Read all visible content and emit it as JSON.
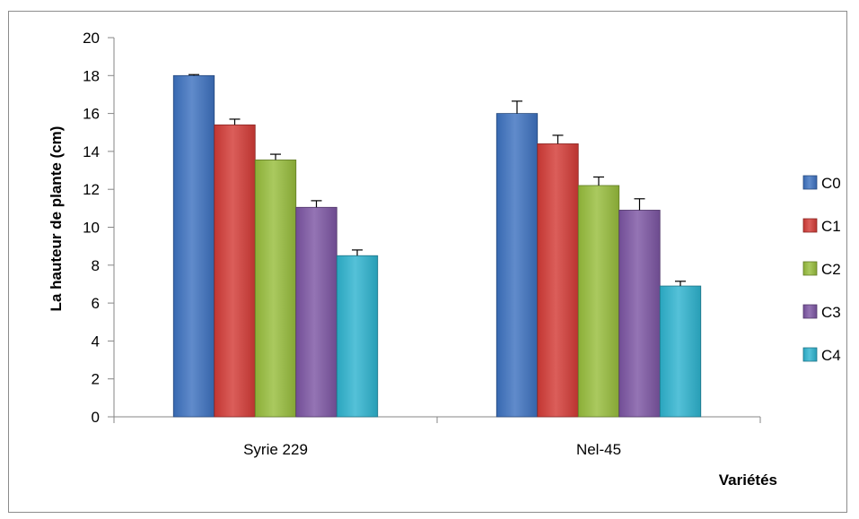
{
  "chart_data": {
    "type": "bar",
    "title": "",
    "xlabel": "Variétés",
    "ylabel": "La hauteur de plante (cm)",
    "ylim": [
      0,
      20
    ],
    "yticks": [
      0,
      2,
      4,
      6,
      8,
      10,
      12,
      14,
      16,
      18,
      20
    ],
    "grid": false,
    "legend_position": "right",
    "categories": [
      "Syrie 229",
      "Nel-45"
    ],
    "series": [
      {
        "name": "C0",
        "color": "#3d72c0",
        "values": [
          18.0,
          16.0
        ],
        "errors": [
          0.05,
          0.65
        ]
      },
      {
        "name": "C1",
        "color": "#d33b36",
        "values": [
          15.4,
          14.4
        ],
        "errors": [
          0.3,
          0.45
        ]
      },
      {
        "name": "C2",
        "color": "#97bd3c",
        "values": [
          13.55,
          12.2
        ],
        "errors": [
          0.3,
          0.45
        ]
      },
      {
        "name": "C3",
        "color": "#7c55a3",
        "values": [
          11.05,
          10.9
        ],
        "errors": [
          0.35,
          0.6
        ]
      },
      {
        "name": "C4",
        "color": "#2eb3cf",
        "values": [
          8.5,
          6.9
        ],
        "errors": [
          0.3,
          0.25
        ]
      }
    ]
  }
}
